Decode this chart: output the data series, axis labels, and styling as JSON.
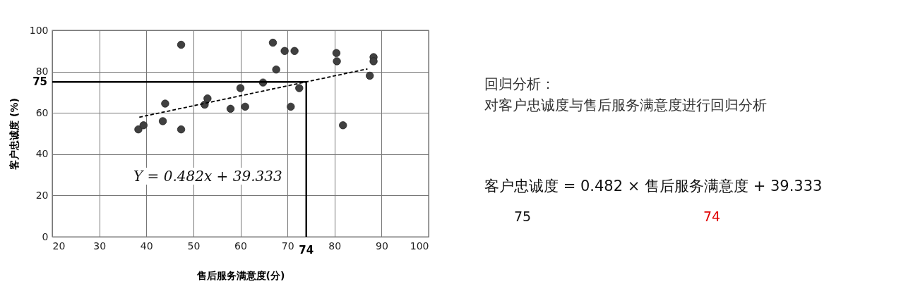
{
  "chart_data": {
    "type": "scatter",
    "xlabel": "售后服务满意度(分)",
    "ylabel": "客户忠诚度 (%)",
    "xlim": [
      20,
      100
    ],
    "xticks": [
      20,
      30,
      40,
      50,
      60,
      70,
      80,
      90,
      100
    ],
    "ylim": [
      0,
      100
    ],
    "yticks": [
      0,
      20,
      40,
      60,
      80,
      100
    ],
    "grid": true,
    "marker": "circle",
    "series": [
      {
        "color": "#404040",
        "x": [
          38.3,
          39.4,
          43.5,
          44,
          47.4,
          47.4,
          52.4,
          53,
          57.9,
          60,
          61,
          64.8,
          66.9,
          67.6,
          69.4,
          70.7,
          71.5,
          72.5,
          80.4,
          80.5,
          81.8,
          87.5,
          88.3,
          88.3
        ],
        "values": [
          52,
          54,
          56,
          64.5,
          52,
          93,
          64,
          67,
          62,
          72,
          63,
          74.7,
          94,
          81,
          90,
          63,
          90,
          72,
          89,
          85,
          54,
          78,
          87,
          85
        ]
      },
      {
        "type": "line",
        "color": "#000000",
        "line_style": "dashed",
        "marker": "none",
        "x": [
          38.5,
          87
        ],
        "values": [
          57.9,
          81.3
        ]
      }
    ],
    "ref_lines": [
      {
        "axis": "y",
        "value": 75,
        "label": "75",
        "color": "#000000"
      },
      {
        "axis": "x",
        "value": 74,
        "label": "74",
        "color": "#000000"
      }
    ],
    "annotations": [
      "Y = 0.482x + 39.333",
      "回归分析：",
      "对客户忠诚度与售后服务满意度进行回归分析",
      "客户忠诚度 = 0.482 × 售后服务满意度 + 39.333",
      "75",
      "74"
    ]
  }
}
